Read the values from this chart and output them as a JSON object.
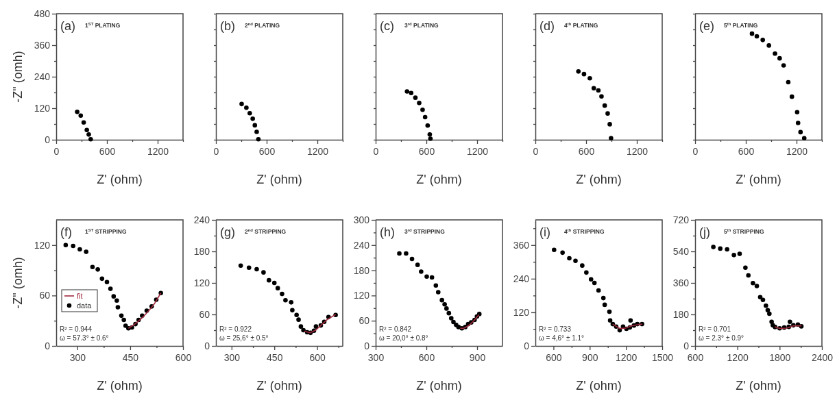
{
  "chart_data": [
    {
      "type": "scatter",
      "title": "(a)",
      "subtitle": "1$^{ST}$ PLATING",
      "xlabel": "Z' (ohm)",
      "ylabel": "-Z\" (omh)",
      "marker": "circle",
      "xlim": [
        0,
        1500
      ],
      "ylim": [
        0,
        480
      ],
      "xticks": [
        0,
        {
          "value": 300,
          "label": null
        },
        600,
        {
          "value": 900,
          "label": null
        },
        1200,
        {
          "value": 1500,
          "label": null
        }
      ],
      "yticks": [
        0,
        {
          "value": 60,
          "label": null
        },
        120,
        {
          "value": 180,
          "label": null
        },
        240,
        {
          "value": 300,
          "label": null
        },
        360,
        {
          "value": 420,
          "label": null
        },
        480
      ],
      "series": [
        {
          "color": "#000000",
          "x": [
            248,
            290,
            325,
            362,
            385,
            408
          ],
          "values": [
            106,
            92,
            66,
            37,
            20,
            2
          ]
        }
      ]
    },
    {
      "type": "scatter",
      "title": "(b)",
      "subtitle": "2$^{nd}$ PLATING",
      "xlabel": "Z' (ohm)",
      "marker": "circle",
      "tick_labels": "x",
      "xlim": [
        0,
        1500
      ],
      "ylim": [
        0,
        480
      ],
      "xticks": [
        0,
        {
          "value": 300,
          "label": null
        },
        600,
        {
          "value": 900,
          "label": null
        },
        1200,
        {
          "value": 1500,
          "label": null
        }
      ],
      "yticks": [
        {
          "value": 0,
          "label": null
        },
        {
          "value": 60,
          "label": null
        },
        {
          "value": 120,
          "label": null
        },
        {
          "value": 180,
          "label": null
        },
        {
          "value": 240,
          "label": null
        },
        {
          "value": 300,
          "label": null
        },
        {
          "value": 360,
          "label": null
        },
        {
          "value": 420,
          "label": null
        },
        {
          "value": 480,
          "label": null
        }
      ],
      "series": [
        {
          "color": "#000000",
          "x": [
            304,
            360,
            400,
            435,
            460,
            482,
            502
          ],
          "values": [
            136,
            122,
            101,
            80,
            55,
            30,
            2
          ]
        }
      ]
    },
    {
      "type": "scatter",
      "title": "(c)",
      "subtitle": "3$^{rd}$ PLATING",
      "xlabel": "Z' (ohm)",
      "marker": "circle",
      "tick_labels": "x",
      "xlim": [
        0,
        1500
      ],
      "ylim": [
        0,
        480
      ],
      "xticks": [
        0,
        {
          "value": 300,
          "label": null
        },
        600,
        {
          "value": 900,
          "label": null
        },
        1200,
        {
          "value": 1500,
          "label": null
        }
      ],
      "yticks": [
        {
          "value": 0,
          "label": null
        },
        {
          "value": 60,
          "label": null
        },
        {
          "value": 120,
          "label": null
        },
        {
          "value": 180,
          "label": null
        },
        {
          "value": 240,
          "label": null
        },
        {
          "value": 300,
          "label": null
        },
        {
          "value": 360,
          "label": null
        },
        {
          "value": 420,
          "label": null
        },
        {
          "value": 480,
          "label": null
        }
      ],
      "series": [
        {
          "color": "#000000",
          "x": [
            371,
            420,
            470,
            515,
            555,
            585,
            615,
            640,
            648
          ],
          "values": [
            184,
            178,
            160,
            140,
            114,
            86,
            54,
            20,
            4
          ]
        }
      ]
    },
    {
      "type": "scatter",
      "title": "(d)",
      "subtitle": "4$^{th}$ PLATING",
      "xlabel": "Z' (ohm)",
      "marker": "circle",
      "tick_labels": "x",
      "xlim": [
        0,
        1500
      ],
      "ylim": [
        0,
        480
      ],
      "xticks": [
        0,
        {
          "value": 300,
          "label": null
        },
        600,
        {
          "value": 900,
          "label": null
        },
        1200,
        {
          "value": 1500,
          "label": null
        }
      ],
      "yticks": [
        {
          "value": 0,
          "label": null
        },
        {
          "value": 60,
          "label": null
        },
        {
          "value": 120,
          "label": null
        },
        {
          "value": 180,
          "label": null
        },
        {
          "value": 240,
          "label": null
        },
        {
          "value": 300,
          "label": null
        },
        {
          "value": 360,
          "label": null
        },
        {
          "value": 420,
          "label": null
        },
        {
          "value": 480,
          "label": null
        }
      ],
      "series": [
        {
          "color": "#000000",
          "x": [
            509,
            575,
            644,
            691,
            745,
            782,
            820,
            855,
            880,
            895
          ],
          "values": [
            260,
            250,
            234,
            196,
            188,
            165,
            130,
            100,
            59,
            6
          ]
        }
      ]
    },
    {
      "type": "scatter",
      "title": "(e)",
      "subtitle": "5$^{th}$ PLATING",
      "xlabel": "Z' (ohm)",
      "marker": "circle",
      "tick_labels": "x",
      "xlim": [
        0,
        1500
      ],
      "ylim": [
        0,
        480
      ],
      "xticks": [
        0,
        {
          "value": 300,
          "label": null
        },
        600,
        {
          "value": 900,
          "label": null
        },
        1200,
        {
          "value": 1500,
          "label": null
        }
      ],
      "yticks": [
        {
          "value": 0,
          "label": null
        },
        {
          "value": 60,
          "label": null
        },
        {
          "value": 120,
          "label": null
        },
        {
          "value": 180,
          "label": null
        },
        {
          "value": 240,
          "label": null
        },
        {
          "value": 300,
          "label": null
        },
        {
          "value": 360,
          "label": null
        },
        {
          "value": 420,
          "label": null
        },
        {
          "value": 480,
          "label": null
        }
      ],
      "series": [
        {
          "color": "#000000",
          "x": [
            673,
            730,
            800,
            873,
            945,
            1000,
            1047,
            1102,
            1145,
            1207,
            1218,
            1247,
            1291
          ],
          "values": [
            404,
            394,
            380,
            359,
            328,
            310,
            283,
            219,
            164,
            105,
            64,
            29,
            6
          ]
        }
      ]
    },
    {
      "type": "scatter",
      "title": "(f)",
      "subtitle": "1$^{ST}$ STRIPPING",
      "xlabel": "Z' (ohm)",
      "ylabel": "-Z\" (omh)",
      "marker": "circle",
      "legend": "left",
      "xlim": [
        240,
        600
      ],
      "ylim": [
        0,
        150
      ],
      "xticks": [
        300,
        {
          "value": 375,
          "label": null
        },
        450,
        {
          "value": 525,
          "label": null
        },
        600
      ],
      "yticks": [
        0,
        {
          "value": 30,
          "label": null
        },
        60,
        {
          "value": 90,
          "label": null
        },
        120
      ],
      "annotations": [
        "R² = 0.944",
        "ω = 57.3° ± 0.6°"
      ],
      "series": [
        {
          "name": "fit",
          "type": "line",
          "marker": "none",
          "color": "#a0283c",
          "x": [
            445,
            460,
            475,
            490,
            505,
            520,
            537
          ],
          "values": [
            21,
            25,
            30,
            36,
            43,
            51,
            63
          ]
        },
        {
          "name": "data",
          "color": "#000000",
          "x": [
            267,
            288,
            307,
            325,
            343,
            358,
            370,
            384,
            394,
            403,
            412,
            415,
            425,
            432,
            437,
            445,
            455,
            465,
            474,
            484,
            497,
            511,
            524,
            537
          ],
          "values": [
            120,
            119,
            115,
            112,
            94,
            91,
            80,
            76,
            68,
            59,
            54,
            46,
            36,
            31,
            24,
            21,
            22,
            26,
            31,
            36,
            42,
            47,
            55,
            63
          ]
        }
      ]
    },
    {
      "type": "scatter",
      "title": "(g)",
      "subtitle": "2$^{nd}$ STRIPPING",
      "xlabel": "Z' (ohm)",
      "marker": "circle",
      "xlim": [
        245,
        690
      ],
      "ylim": [
        0,
        240
      ],
      "xticks": [
        300,
        {
          "value": 375,
          "label": null
        },
        450,
        {
          "value": 525,
          "label": null
        },
        600,
        {
          "value": 675,
          "label": null
        }
      ],
      "yticks": [
        0,
        {
          "value": 30,
          "label": null
        },
        60,
        {
          "value": 90,
          "label": null
        },
        120,
        {
          "value": 150,
          "label": null
        },
        180,
        {
          "value": 210,
          "label": null
        },
        240
      ],
      "annotations": [
        "R² = 0.922",
        "ω = 25,6° ± 0.5°"
      ],
      "series": [
        {
          "type": "line",
          "marker": "none",
          "color": "#a0283c",
          "x": [
            555,
            575,
            595,
            615,
            635,
            665
          ],
          "values": [
            28,
            25,
            30,
            40,
            50,
            60
          ]
        },
        {
          "color": "#000000",
          "x": [
            332,
            361,
            388,
            412,
            431,
            450,
            462,
            477,
            489,
            509,
            513,
            528,
            535,
            543,
            552,
            565,
            577,
            589,
            596,
            613,
            625,
            640,
            665
          ],
          "values": [
            153,
            149,
            146,
            140,
            125,
            120,
            110,
            99,
            87,
            83,
            68,
            59,
            50,
            37,
            30,
            26,
            25,
            29,
            37,
            39,
            46,
            55,
            59
          ]
        }
      ]
    },
    {
      "type": "scatter",
      "title": "(h)",
      "subtitle": "3$^{rd}$ STRIPPING",
      "xlabel": "Z' (ohm)",
      "marker": "circle",
      "xlim": [
        300,
        1050
      ],
      "ylim": [
        0,
        300
      ],
      "xticks": [
        300,
        {
          "value": 450,
          "label": null
        },
        600,
        {
          "value": 750,
          "label": null
        },
        900
      ],
      "yticks": [
        0,
        {
          "value": 30,
          "label": null
        },
        60,
        {
          "value": 90,
          "label": null
        },
        120,
        {
          "value": 150,
          "label": null
        },
        180,
        {
          "value": 210,
          "label": null
        },
        240,
        {
          "value": 270,
          "label": null
        },
        300
      ],
      "annotations": [
        "R² = 0.842",
        "ω = 20,0° ± 0.8°"
      ],
      "series": [
        {
          "type": "line",
          "marker": "none",
          "color": "#a0283c",
          "x": [
            800,
            820,
            840,
            860,
            880,
            910
          ],
          "values": [
            42,
            42,
            46,
            52,
            60,
            74
          ]
        },
        {
          "color": "#000000",
          "x": [
            440,
            480,
            515,
            548,
            569,
            602,
            633,
            656,
            670,
            692,
            708,
            719,
            733,
            747,
            760,
            776,
            790,
            810,
            830,
            847,
            865,
            885,
            899,
            913
          ],
          "values": [
            220,
            220,
            207,
            193,
            177,
            165,
            163,
            144,
            128,
            109,
            99,
            89,
            78,
            66,
            57,
            50,
            45,
            42,
            45,
            52,
            56,
            62,
            70,
            76
          ]
        }
      ]
    },
    {
      "type": "scatter",
      "title": "(i)",
      "subtitle": "4$^{th}$ STRIPPING",
      "xlabel": "Z' (ohm)",
      "marker": "circle",
      "xlim": [
        450,
        1500
      ],
      "ylim": [
        0,
        450
      ],
      "xticks": [
        600,
        {
          "value": 750,
          "label": null
        },
        900,
        {
          "value": 1050,
          "label": null
        },
        1200,
        {
          "value": 1350,
          "label": null
        },
        1500
      ],
      "yticks": [
        0,
        {
          "value": 60,
          "label": null
        },
        120,
        {
          "value": 180,
          "label": null
        },
        240,
        {
          "value": 300,
          "label": null
        },
        360,
        {
          "value": 420,
          "label": null
        }
      ],
      "annotations": [
        "R² = 0.733",
        "ω = 4,6° ± 1.1°"
      ],
      "series": [
        {
          "type": "line",
          "marker": "none",
          "color": "#a0283c",
          "x": [
            1090,
            1150,
            1200,
            1250,
            1300,
            1335
          ],
          "values": [
            78,
            62,
            64,
            72,
            76,
            78
          ]
        },
        {
          "color": "#000000",
          "x": [
            605,
            675,
            731,
            782,
            838,
            872,
            911,
            939,
            973,
            1013,
            1024,
            1063,
            1069,
            1091,
            1119,
            1148,
            1176,
            1204,
            1232,
            1238,
            1266,
            1294,
            1333
          ],
          "values": [
            343,
            333,
            313,
            304,
            287,
            262,
            238,
            225,
            198,
            171,
            147,
            122,
            91,
            78,
            69,
            56,
            69,
            61,
            66,
            91,
            73,
            78,
            78
          ]
        }
      ]
    },
    {
      "type": "scatter",
      "title": "(j)",
      "subtitle": "5$^{th}$ STRIPPING",
      "xlabel": "Z' (ohm)",
      "marker": "circle",
      "xlim": [
        600,
        2400
      ],
      "ylim": [
        0,
        720
      ],
      "xticks": [
        600,
        {
          "value": 900,
          "label": null
        },
        1200,
        {
          "value": 1500,
          "label": null
        },
        1800,
        {
          "value": 2100,
          "label": null
        },
        2400
      ],
      "yticks": [
        0,
        {
          "value": 90,
          "label": null
        },
        180,
        {
          "value": 270,
          "label": null
        },
        360,
        {
          "value": 450,
          "label": null
        },
        540,
        {
          "value": 630,
          "label": null
        },
        720
      ],
      "annotations": [
        "R² = 0.701",
        "ω = 2.3° ± 0.9°"
      ],
      "series": [
        {
          "type": "line",
          "marker": "none",
          "color": "#a0283c",
          "x": [
            1730,
            1800,
            1900,
            2000,
            2110
          ],
          "values": [
            110,
            100,
            102,
            115,
            115
          ]
        },
        {
          "color": "#000000",
          "x": [
            859,
            957,
            1054,
            1151,
            1232,
            1314,
            1356,
            1421,
            1476,
            1524,
            1563,
            1605,
            1631,
            1654,
            1686,
            1703,
            1735,
            1800,
            1865,
            1930,
            1946,
            1995,
            2059,
            2108
          ],
          "values": [
            565,
            556,
            552,
            519,
            526,
            447,
            403,
            359,
            342,
            279,
            263,
            230,
            204,
            184,
            138,
            118,
            108,
            101,
            105,
            109,
            138,
            118,
            122,
            112
          ]
        }
      ]
    }
  ]
}
